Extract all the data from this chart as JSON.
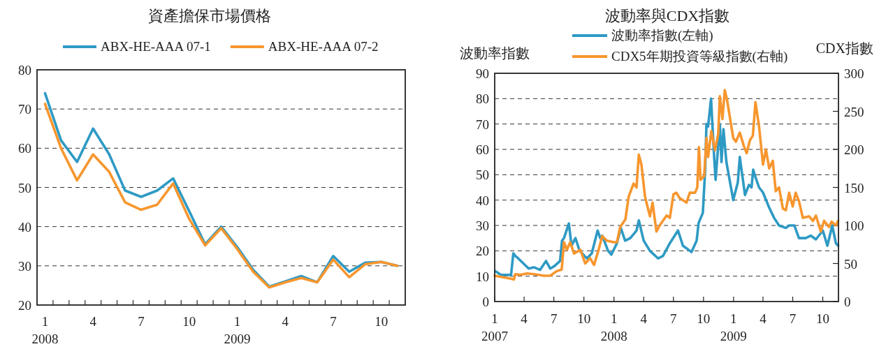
{
  "chart_data": [
    {
      "type": "line",
      "title": "資產擔保市場價格",
      "categories": [
        "1\n2008",
        null,
        null,
        "4",
        null,
        null,
        "7",
        null,
        null,
        "10",
        null,
        null,
        "1\n2009",
        null,
        null,
        "4",
        null,
        null,
        "7",
        null,
        null,
        "10",
        null
      ],
      "ylim": [
        20,
        80
      ],
      "yticks": [
        20,
        30,
        40,
        50,
        60,
        70,
        80
      ],
      "grid": "y",
      "legend": "top",
      "series": [
        {
          "name": "ABX-HE-AAA 07-1",
          "color": "#2e9ac4",
          "values": [
            74,
            62,
            56.5,
            65,
            58.5,
            49.2,
            47.6,
            49.2,
            52.3,
            44,
            35.5,
            40,
            34.8,
            29,
            24.7,
            26,
            27.4,
            25.8,
            32.5,
            28.5,
            30.8,
            31,
            30
          ]
        },
        {
          "name": "ABX-HE-AAA 07-2",
          "color": "#f7962e",
          "values": [
            71.3,
            60,
            51.8,
            58.4,
            54,
            46.2,
            44.3,
            45.6,
            51,
            42,
            35.2,
            39.6,
            34.3,
            28.5,
            24.5,
            25.8,
            26.9,
            25.8,
            31.6,
            27.1,
            30.4,
            31,
            30
          ]
        }
      ]
    },
    {
      "type": "line",
      "title": "波動率與CDX指數",
      "ylabel": "波動率指數",
      "y2label": "CDX指數",
      "xlim": [
        "2007-01-01",
        "2009-11-18"
      ],
      "xticks": [
        {
          "value": "2007-01",
          "label": "1\n2007"
        },
        {
          "value": "2007-04",
          "label": "4"
        },
        {
          "value": "2007-07",
          "label": "7"
        },
        {
          "value": "2007-10",
          "label": "10"
        },
        {
          "value": "2008-01",
          "label": "1\n2008"
        },
        {
          "value": "2008-04",
          "label": "4"
        },
        {
          "value": "2008-07",
          "label": "7"
        },
        {
          "value": "2008-10",
          "label": "10"
        },
        {
          "value": "2009-01",
          "label": "1\n2009"
        },
        {
          "value": "2009-04",
          "label": "4"
        },
        {
          "value": "2009-07",
          "label": "7"
        },
        {
          "value": "2009-10",
          "label": "10"
        }
      ],
      "ylim": [
        0,
        90
      ],
      "yticks": [
        0,
        10,
        20,
        30,
        40,
        50,
        60,
        70,
        80,
        90
      ],
      "y2lim": [
        0,
        300
      ],
      "y2ticks": [
        0,
        50,
        100,
        150,
        200,
        250,
        300
      ],
      "grid": "y",
      "legend": "top",
      "series": [
        {
          "name": "波動率指數(左軸)",
          "color": "#2e9ac4",
          "x": [
            "2007-01-03",
            "2007-01-20",
            "2007-02-20",
            "2007-02-27",
            "2007-03-05",
            "2007-03-14",
            "2007-03-30",
            "2007-04-15",
            "2007-05-01",
            "2007-05-20",
            "2007-06-07",
            "2007-06-20",
            "2007-07-03",
            "2007-07-20",
            "2007-07-26",
            "2007-08-01",
            "2007-08-16",
            "2007-08-24",
            "2007-09-05",
            "2007-09-18",
            "2007-10-10",
            "2007-10-25",
            "2007-11-12",
            "2007-11-20",
            "2007-11-26",
            "2007-12-14",
            "2007-12-24",
            "2008-01-10",
            "2008-01-22",
            "2008-02-04",
            "2008-02-20",
            "2008-03-10",
            "2008-03-17",
            "2008-04-01",
            "2008-04-20",
            "2008-05-15",
            "2008-05-30",
            "2008-06-20",
            "2008-07-15",
            "2008-07-30",
            "2008-08-10",
            "2008-08-25",
            "2008-09-10",
            "2008-09-16",
            "2008-09-29",
            "2008-10-06",
            "2008-10-10",
            "2008-10-15",
            "2008-10-24",
            "2008-11-03",
            "2008-11-07",
            "2008-11-20",
            "2008-11-25",
            "2008-12-01",
            "2008-12-10",
            "2008-12-31",
            "2009-01-14",
            "2009-01-20",
            "2009-02-05",
            "2009-02-17",
            "2009-02-25",
            "2009-03-02",
            "2009-03-09",
            "2009-03-20",
            "2009-04-01",
            "2009-04-20",
            "2009-05-05",
            "2009-05-20",
            "2009-06-10",
            "2009-06-20",
            "2009-07-06",
            "2009-07-20",
            "2009-08-10",
            "2009-08-25",
            "2009-09-10",
            "2009-10-01",
            "2009-10-15",
            "2009-10-30",
            "2009-11-10",
            "2009-11-17"
          ],
          "values": [
            12,
            10.5,
            10.5,
            19,
            18,
            17,
            15,
            13,
            13.5,
            12.5,
            16,
            13,
            14,
            16,
            24,
            25,
            30.8,
            22,
            25,
            20,
            17,
            19,
            28,
            25,
            26,
            20,
            18.5,
            23,
            29,
            24,
            25,
            28,
            32,
            24,
            20,
            17,
            18,
            23,
            28,
            22,
            21,
            19.5,
            24,
            31,
            35,
            52,
            70,
            69,
            80,
            56,
            48,
            70,
            55,
            68,
            55,
            40,
            47,
            57,
            42,
            46,
            45,
            52,
            49,
            45,
            43,
            37,
            33,
            30,
            29,
            30,
            30,
            25,
            25,
            26,
            24.5,
            28,
            22,
            30,
            23,
            22
          ]
        },
        {
          "name": "CDX5年期投資等級指數(右軸)",
          "color": "#f7962e",
          "axis": "y2",
          "x": [
            "2007-01-01",
            "2007-02-20",
            "2007-03-01",
            "2007-03-05",
            "2007-03-20",
            "2007-04-10",
            "2007-05-01",
            "2007-06-01",
            "2007-06-20",
            "2007-07-10",
            "2007-07-25",
            "2007-08-01",
            "2007-08-10",
            "2007-08-20",
            "2007-09-01",
            "2007-09-20",
            "2007-10-05",
            "2007-10-20",
            "2007-11-01",
            "2007-11-15",
            "2007-11-26",
            "2007-12-10",
            "2007-12-31",
            "2008-01-10",
            "2008-01-20",
            "2008-02-05",
            "2008-02-15",
            "2008-03-01",
            "2008-03-10",
            "2008-03-17",
            "2008-03-25",
            "2008-04-05",
            "2008-04-20",
            "2008-04-28",
            "2008-05-10",
            "2008-05-20",
            "2008-06-10",
            "2008-06-20",
            "2008-07-01",
            "2008-07-10",
            "2008-07-20",
            "2008-08-10",
            "2008-08-20",
            "2008-09-05",
            "2008-09-12",
            "2008-09-17",
            "2008-09-22",
            "2008-10-03",
            "2008-10-10",
            "2008-10-15",
            "2008-10-25",
            "2008-11-05",
            "2008-11-15",
            "2008-11-20",
            "2008-11-28",
            "2008-12-05",
            "2008-12-12",
            "2008-12-31",
            "2009-01-08",
            "2009-01-20",
            "2009-02-01",
            "2009-02-10",
            "2009-02-20",
            "2009-03-01",
            "2009-03-09",
            "2009-03-20",
            "2009-04-01",
            "2009-04-10",
            "2009-04-20",
            "2009-05-01",
            "2009-05-10",
            "2009-05-20",
            "2009-06-01",
            "2009-06-10",
            "2009-06-20",
            "2009-07-01",
            "2009-07-10",
            "2009-07-20",
            "2009-08-01",
            "2009-08-20",
            "2009-09-01",
            "2009-09-10",
            "2009-09-25",
            "2009-10-05",
            "2009-10-20",
            "2009-10-28",
            "2009-11-10",
            "2009-11-17"
          ],
          "values": [
            34,
            30,
            29,
            36,
            35,
            37,
            36,
            34,
            34,
            40,
            42,
            78,
            68,
            78,
            63,
            68,
            50,
            57,
            48,
            68,
            86,
            80,
            78,
            78,
            98,
            108,
            138,
            155,
            150,
            193,
            180,
            138,
            112,
            130,
            92,
            100,
            113,
            110,
            141,
            143,
            136,
            130,
            143,
            143,
            150,
            203,
            160,
            165,
            215,
            190,
            224,
            199,
            220,
            270,
            240,
            278,
            265,
            215,
            210,
            222,
            205,
            195,
            212,
            218,
            262,
            230,
            180,
            200,
            175,
            185,
            145,
            150,
            122,
            120,
            143,
            125,
            143,
            132,
            110,
            112,
            106,
            113,
            92,
            106,
            98,
            105,
            100,
            106
          ]
        }
      ]
    }
  ]
}
